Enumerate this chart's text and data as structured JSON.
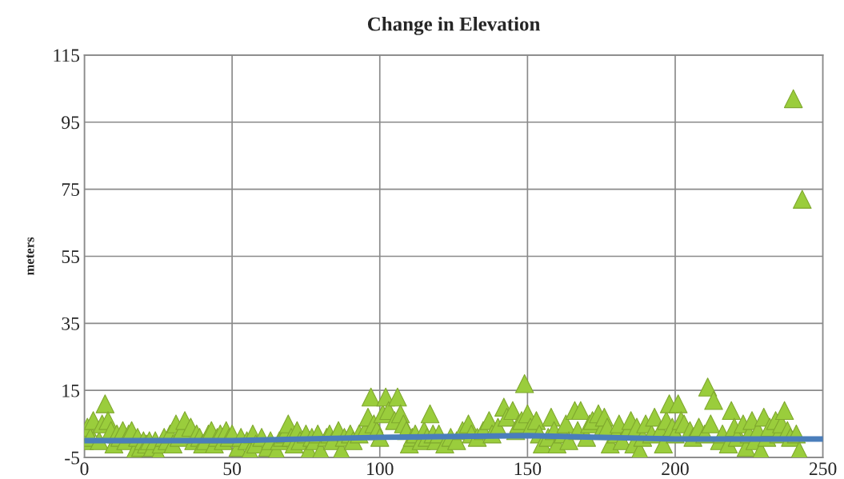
{
  "chart_data": {
    "type": "scatter",
    "title": "Change in Elevation",
    "ylabel": "meters",
    "xlim": [
      0,
      250
    ],
    "xticks": [
      0,
      50,
      100,
      150,
      200,
      250
    ],
    "ylim": [
      -5,
      115
    ],
    "yticks": [
      -5,
      15,
      35,
      55,
      75,
      95,
      115
    ],
    "grid": true,
    "series": [
      {
        "type": "line",
        "color": "#4a7ebb",
        "marker": "none",
        "line_style": "solid",
        "x": [
          0,
          50,
          100,
          150,
          200,
          250
        ],
        "values": [
          0,
          0,
          1,
          1.5,
          0.5,
          0.5
        ]
      },
      {
        "color": "#9acd3c",
        "marker": "triangle",
        "x": [
          0,
          1,
          2,
          3,
          5,
          6,
          7,
          8,
          9,
          10,
          11,
          12,
          13,
          14,
          15,
          16,
          17,
          18,
          19,
          20,
          21,
          22,
          23,
          24,
          25,
          26,
          27,
          28,
          29,
          30,
          31,
          32,
          33,
          34,
          35,
          36,
          37,
          38,
          39,
          40,
          41,
          42,
          43,
          44,
          45,
          46,
          47,
          48,
          49,
          50,
          52,
          53,
          55,
          56,
          57,
          58,
          60,
          62,
          63,
          65,
          66,
          67,
          68,
          69,
          70,
          71,
          72,
          73,
          75,
          76,
          77,
          78,
          79,
          80,
          82,
          83,
          84,
          86,
          87,
          88,
          90,
          91,
          93,
          95,
          96,
          97,
          98,
          99,
          100,
          101,
          102,
          103,
          105,
          106,
          107,
          108,
          109,
          110,
          111,
          112,
          114,
          115,
          116,
          117,
          118,
          119,
          120,
          122,
          124,
          126,
          128,
          130,
          131,
          133,
          135,
          137,
          138,
          140,
          142,
          143,
          145,
          146,
          147,
          148,
          149,
          150,
          151,
          153,
          154,
          155,
          157,
          158,
          159,
          160,
          162,
          163,
          164,
          166,
          167,
          168,
          170,
          171,
          172,
          174,
          175,
          176,
          177,
          178,
          180,
          181,
          182,
          184,
          185,
          186,
          187,
          188,
          189,
          190,
          192,
          193,
          195,
          196,
          197,
          198,
          199,
          200,
          201,
          202,
          203,
          205,
          206,
          208,
          210,
          211,
          212,
          213,
          215,
          216,
          218,
          219,
          220,
          221,
          223,
          224,
          225,
          226,
          227,
          228,
          229,
          230,
          231,
          232,
          234,
          235,
          236,
          237,
          238,
          239,
          240,
          241,
          242,
          243
        ],
        "values": [
          0,
          4,
          1,
          6,
          0,
          5,
          11,
          6,
          3,
          -1,
          2,
          1,
          3,
          0,
          2,
          3,
          -3,
          1,
          -2,
          0,
          -1,
          0,
          -2,
          0,
          -4,
          -1,
          1,
          0,
          2,
          -1,
          5,
          1,
          3,
          6,
          null,
          4,
          0,
          2,
          1,
          -1,
          0,
          2,
          3,
          -1,
          1,
          2,
          0,
          3,
          1,
          2,
          -2,
          1,
          0,
          -3,
          2,
          -1,
          1,
          -2,
          0,
          -3,
          0,
          1,
          2,
          5,
          1,
          -1,
          3,
          0,
          2,
          -3,
          1,
          0,
          2,
          -3,
          1,
          2,
          0,
          3,
          -3,
          1,
          2,
          0,
          2,
          3,
          7,
          13,
          5,
          3,
          1,
          8,
          13,
          9,
          6,
          13,
          8,
          5,
          3,
          -1,
          1,
          2,
          0,
          3,
          1,
          8,
          2,
          0,
          2,
          -1,
          1,
          0,
          3,
          5,
          2,
          1,
          3,
          6,
          2,
          4,
          10,
          7,
          9,
          3,
          5,
          6,
          17,
          8,
          4,
          6,
          2,
          -1,
          1,
          7,
          3,
          -1,
          2,
          5,
          0,
          9,
          3,
          9,
          1,
          5,
          6,
          8,
          3,
          7,
          4,
          -1,
          2,
          5,
          0,
          3,
          6,
          -1,
          4,
          -3,
          1,
          5,
          2,
          7,
          3,
          -1,
          6,
          11,
          4,
          2,
          11,
          6,
          5,
          3,
          1,
          4,
          2,
          16,
          5,
          12,
          0,
          2,
          -1,
          9,
          4,
          1,
          5,
          -2,
          2,
          6,
          0,
          3,
          -3,
          7,
          1,
          4,
          6,
          2,
          5,
          9,
          3,
          1,
          102,
          2,
          -3,
          72
        ]
      }
    ]
  }
}
